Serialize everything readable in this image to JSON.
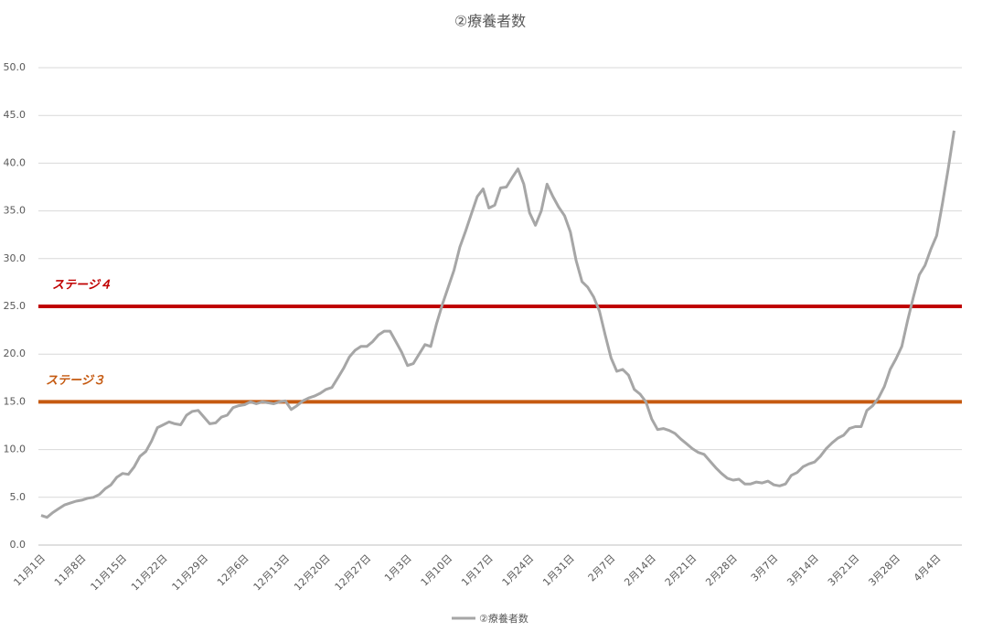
{
  "chart_data": {
    "type": "line",
    "title": "②療養者数",
    "categories": [
      "11月1日",
      null,
      null,
      null,
      null,
      null,
      null,
      "11月8日",
      null,
      null,
      null,
      null,
      null,
      null,
      "11月15日",
      null,
      null,
      null,
      null,
      null,
      null,
      "11月22日",
      null,
      null,
      null,
      null,
      null,
      null,
      "11月29日",
      null,
      null,
      null,
      null,
      null,
      null,
      "12月6日",
      null,
      null,
      null,
      null,
      null,
      null,
      "12月13日",
      null,
      null,
      null,
      null,
      null,
      null,
      "12月20日",
      null,
      null,
      null,
      null,
      null,
      null,
      "12月27日",
      null,
      null,
      null,
      null,
      null,
      null,
      "1月3日",
      null,
      null,
      null,
      null,
      null,
      null,
      "1月10日",
      null,
      null,
      null,
      null,
      null,
      null,
      "1月17日",
      null,
      null,
      null,
      null,
      null,
      null,
      "1月24日",
      null,
      null,
      null,
      null,
      null,
      null,
      "1月31日",
      null,
      null,
      null,
      null,
      null,
      null,
      "2月7日",
      null,
      null,
      null,
      null,
      null,
      null,
      "2月14日",
      null,
      null,
      null,
      null,
      null,
      null,
      "2月21日",
      null,
      null,
      null,
      null,
      null,
      null,
      "2月28日",
      null,
      null,
      null,
      null,
      null,
      null,
      "3月7日",
      null,
      null,
      null,
      null,
      null,
      null,
      "3月14日",
      null,
      null,
      null,
      null,
      null,
      null,
      "3月21日",
      null,
      null,
      null,
      null,
      null,
      null,
      "3月28日",
      null,
      null,
      null,
      null,
      null,
      null,
      "4月4日",
      null,
      null,
      null
    ],
    "series": [
      {
        "name": "②療養者数",
        "color": "#a6a6a6",
        "values": [
          3.1,
          2.9,
          3.4,
          3.8,
          4.2,
          4.4,
          4.6,
          4.7,
          4.9,
          5.0,
          5.3,
          5.9,
          6.3,
          7.1,
          7.5,
          7.4,
          8.2,
          9.3,
          9.8,
          10.9,
          12.3,
          12.6,
          12.9,
          12.7,
          12.6,
          13.6,
          14.0,
          14.1,
          13.4,
          12.7,
          12.8,
          13.4,
          13.6,
          14.4,
          14.6,
          14.7,
          15.0,
          14.8,
          15.0,
          14.9,
          14.8,
          15.0,
          15.1,
          14.2,
          14.6,
          15.1,
          15.4,
          15.6,
          15.9,
          16.3,
          16.5,
          17.5,
          18.5,
          19.7,
          20.4,
          20.8,
          20.8,
          21.3,
          22.0,
          22.4,
          22.4,
          21.3,
          20.2,
          18.8,
          19.0,
          20.0,
          21.0,
          20.8,
          23.2,
          25.2,
          27.0,
          28.8,
          31.2,
          32.9,
          34.7,
          36.5,
          37.3,
          35.3,
          35.6,
          37.4,
          37.5,
          38.5,
          39.4,
          37.8,
          34.8,
          33.5,
          35.0,
          37.8,
          36.5,
          35.4,
          34.5,
          32.8,
          29.8,
          27.6,
          27.0,
          26.0,
          24.5,
          22.0,
          19.6,
          18.2,
          18.4,
          17.8,
          16.3,
          15.8,
          15.0,
          13.2,
          12.1,
          12.2,
          12.0,
          11.7,
          11.1,
          10.6,
          10.1,
          9.7,
          9.5,
          8.8,
          8.1,
          7.5,
          7.0,
          6.8,
          6.9,
          6.4,
          6.4,
          6.6,
          6.5,
          6.7,
          6.3,
          6.2,
          6.4,
          7.3,
          7.6,
          8.2,
          8.5,
          8.7,
          9.3,
          10.1,
          10.7,
          11.2,
          11.5,
          12.2,
          12.4,
          12.4,
          14.1,
          14.6,
          15.4,
          16.6,
          18.4,
          19.5,
          20.8,
          23.5,
          26.0,
          28.3,
          29.3,
          31.0,
          32.4,
          35.8,
          39.5,
          43.4
        ]
      }
    ],
    "reference_lines": [
      {
        "label": "ステージ４",
        "value": 25,
        "color": "#c00000"
      },
      {
        "label": "ステージ３",
        "value": 15,
        "color": "#c55a11"
      }
    ],
    "ylim": [
      0,
      50
    ],
    "yticks": [
      {
        "value": 0,
        "label": "0.0"
      },
      {
        "value": 5,
        "label": "5.0"
      },
      {
        "value": 10,
        "label": "10.0"
      },
      {
        "value": 15,
        "label": "15.0"
      },
      {
        "value": 20,
        "label": "20.0"
      },
      {
        "value": 25,
        "label": "25.0"
      },
      {
        "value": 30,
        "label": "30.0"
      },
      {
        "value": 35,
        "label": "35.0"
      },
      {
        "value": 40,
        "label": "40.0"
      },
      {
        "value": 45,
        "label": "45.0"
      },
      {
        "value": 50,
        "label": "50.0"
      }
    ],
    "grid": true,
    "legend": "bottom"
  }
}
